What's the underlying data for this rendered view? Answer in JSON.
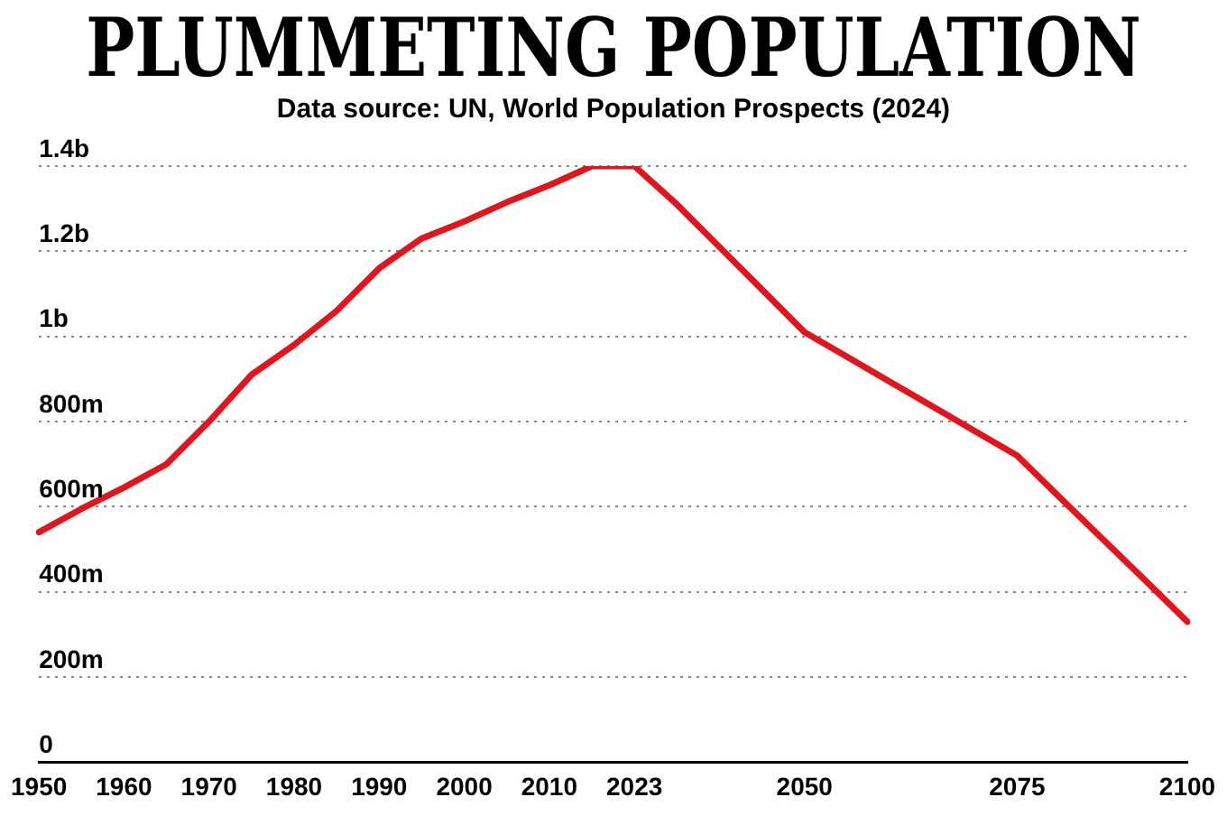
{
  "chart_data": {
    "type": "line",
    "title": "PLUMMETING POPULATION",
    "subtitle": "Data source:  UN, World Population Prospects (2024)",
    "categories": [
      "1950",
      null,
      "1960",
      null,
      "1970",
      null,
      "1980",
      null,
      "1990",
      null,
      "2000",
      null,
      "2010",
      null,
      "2023",
      null,
      null,
      null,
      "2050",
      null,
      null,
      null,
      null,
      "2075",
      null,
      null,
      null,
      "2100"
    ],
    "series": [
      {
        "color": "#e3141b",
        "values": [
          540000000,
          595000000,
          645000000,
          700000000,
          800000000,
          910000000,
          980000000,
          1060000000,
          1160000000,
          1230000000,
          1270000000,
          1315000000,
          1355000000,
          1400000000,
          1400000000,
          1310000000,
          1210000000,
          1110000000,
          1010000000,
          952000000,
          894000000,
          836000000,
          778000000,
          720000000,
          622000000,
          525000000,
          428000000,
          330000000
        ]
      }
    ],
    "ylim": [
      0,
      1400000000
    ],
    "yticks": [
      {
        "value": 0,
        "label": "0"
      },
      {
        "value": 200000000,
        "label": "200m"
      },
      {
        "value": 400000000,
        "label": "400m"
      },
      {
        "value": 600000000,
        "label": "600m"
      },
      {
        "value": 800000000,
        "label": "800m"
      },
      {
        "value": 1000000000,
        "label": "1b"
      },
      {
        "value": 1200000000,
        "label": "1.2b"
      },
      {
        "value": 1400000000,
        "label": "1.4b"
      }
    ],
    "grid": "y",
    "legend": false,
    "marker": "none",
    "line_style": "solid"
  }
}
